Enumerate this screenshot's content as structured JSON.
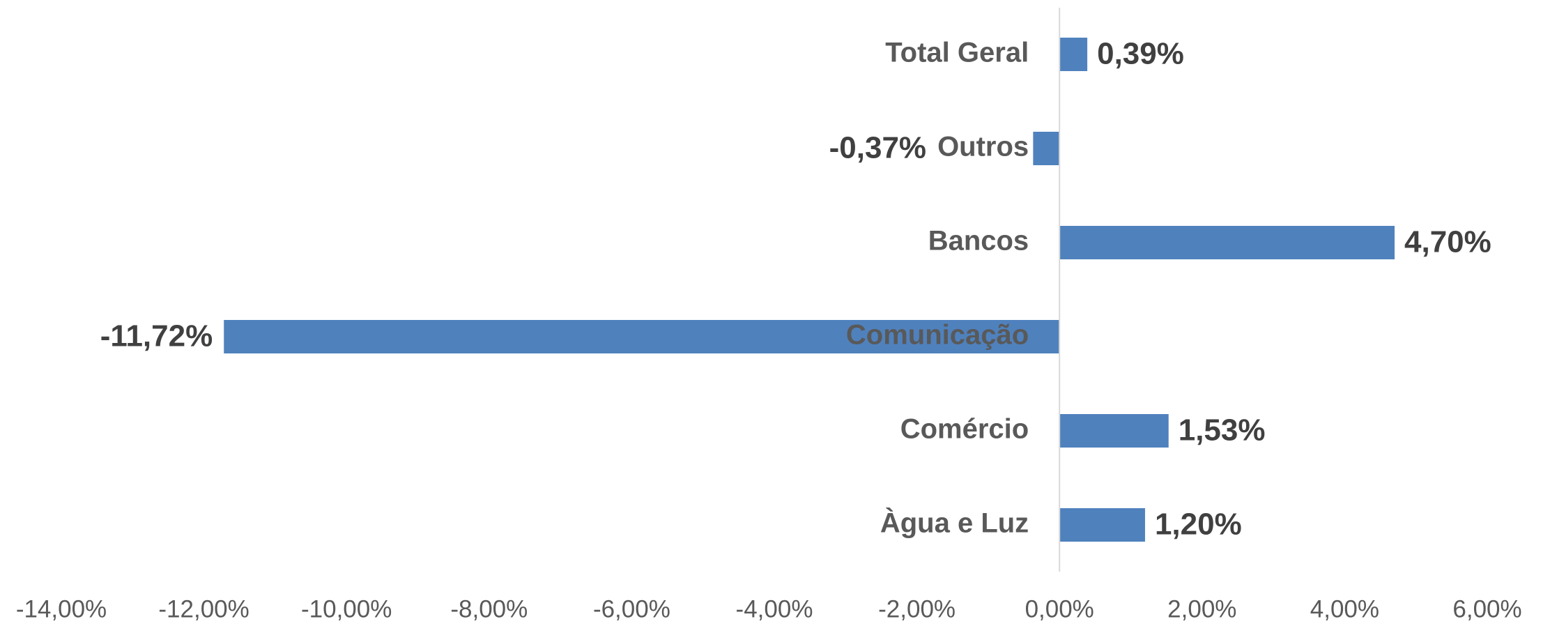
{
  "chart_data": {
    "type": "hbar",
    "categories": [
      "Total Geral",
      "Outros",
      "Bancos",
      "Comunicação",
      "Comércio",
      "Àgua e Luz"
    ],
    "values": [
      0.39,
      -0.37,
      4.7,
      -11.72,
      1.53,
      1.2
    ],
    "value_labels": [
      "0,39%",
      "-0,37%",
      "4,70%",
      "-11,72%",
      "1,53%",
      "1,20%"
    ],
    "color": "#4f81bd",
    "xlim": [
      -14,
      6
    ],
    "xticks": [
      {
        "value": -14,
        "label": "-14,00%"
      },
      {
        "value": -12,
        "label": "-12,00%"
      },
      {
        "value": -10,
        "label": "-10,00%"
      },
      {
        "value": -8,
        "label": "-8,00%"
      },
      {
        "value": -6,
        "label": "-6,00%"
      },
      {
        "value": -4,
        "label": "-4,00%"
      },
      {
        "value": -2,
        "label": "-2,00%"
      },
      {
        "value": 0,
        "label": "0,00%"
      },
      {
        "value": 2,
        "label": "2,00%"
      },
      {
        "value": 4,
        "label": "4,00%"
      },
      {
        "value": 6,
        "label": "6,00%"
      }
    ],
    "grid": false
  }
}
